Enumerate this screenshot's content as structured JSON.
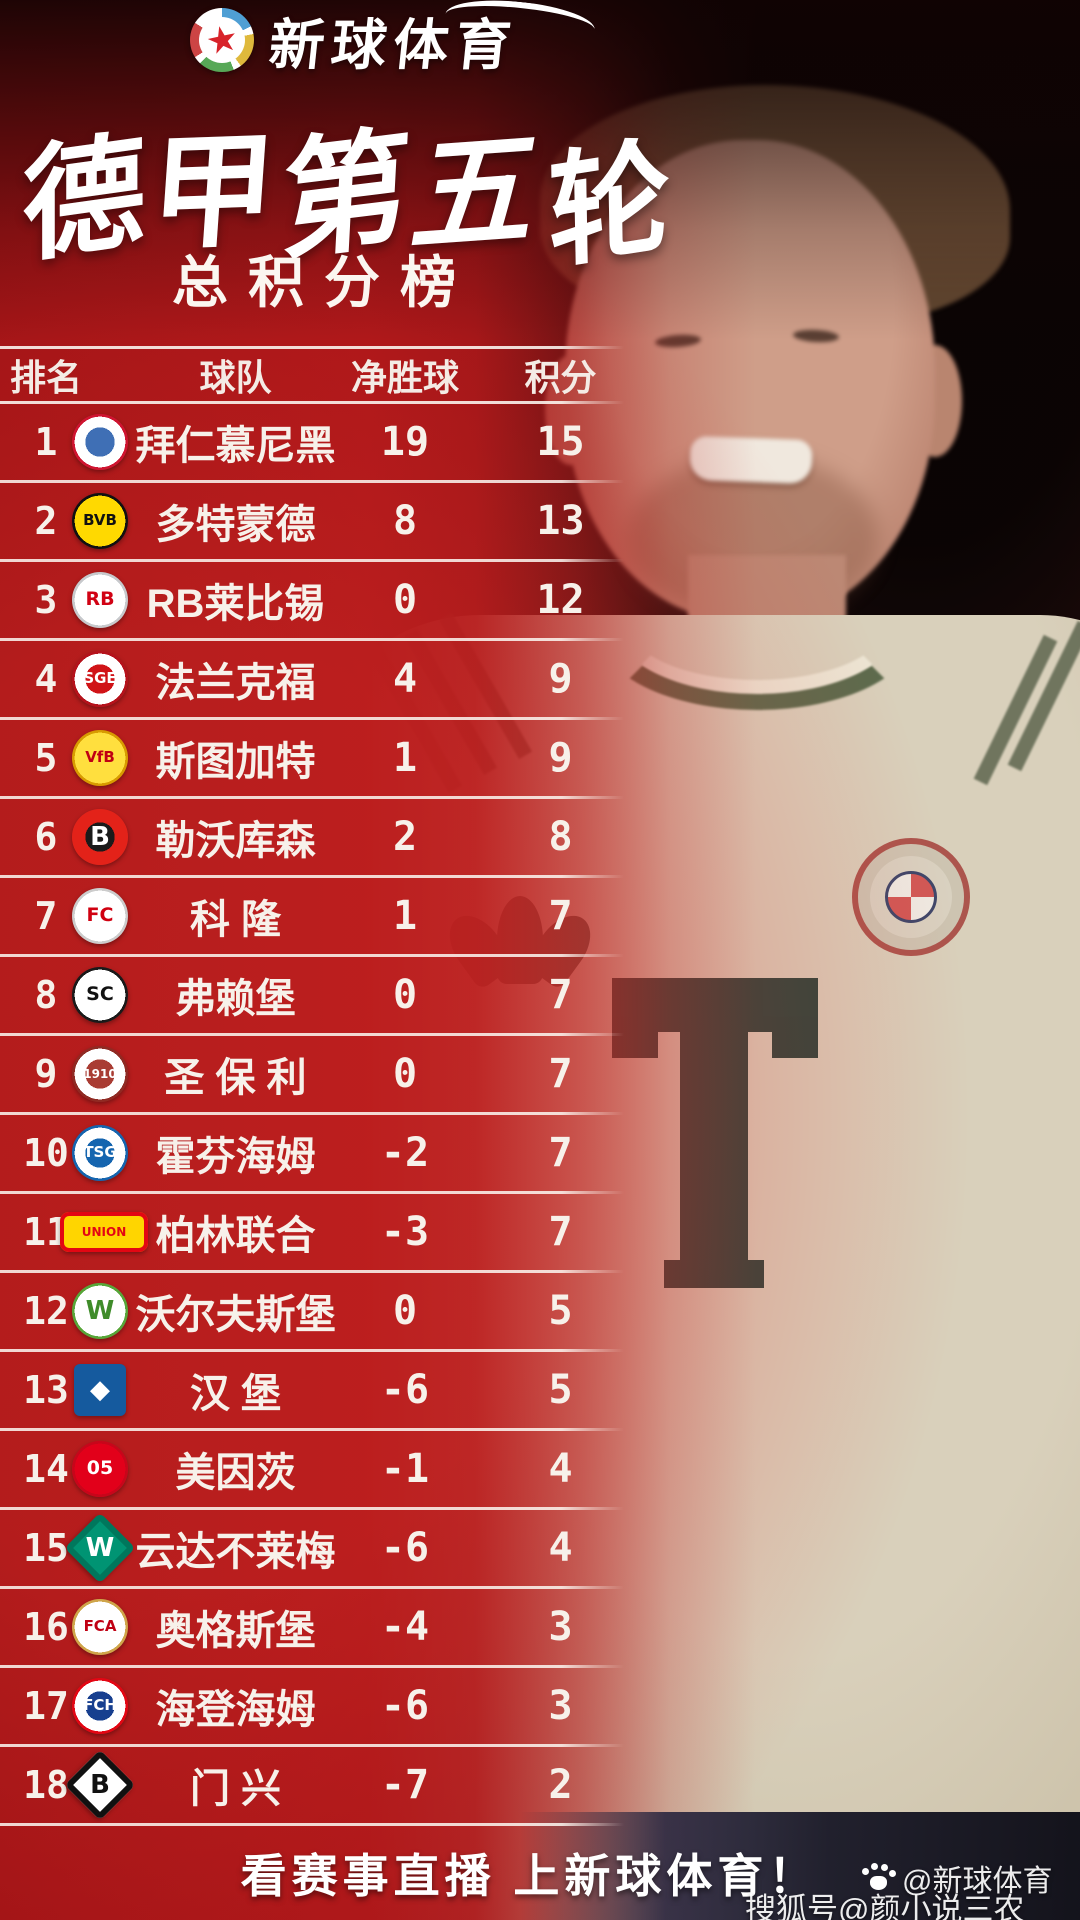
{
  "brand": {
    "name": "新球体育",
    "logo_icon": "soccer-ball-star-icon",
    "star_color": "#d8232a"
  },
  "title": "德甲第五轮",
  "subtitle": "总积分榜",
  "table": {
    "headers": {
      "rank": "排名",
      "team": "球队",
      "gd": "净胜球",
      "points": "积分"
    },
    "rows": [
      {
        "rank": "1",
        "team": "拜仁慕尼黑",
        "gd": "19",
        "points": "15",
        "badge": {
          "shape": "circle",
          "colors": [
            "#cf1430",
            "#ffffff",
            "#3f6fb5"
          ],
          "text": "",
          "text_color": "#ffffff"
        }
      },
      {
        "rank": "2",
        "team": "多特蒙德",
        "gd": "8",
        "points": "13",
        "badge": {
          "shape": "circle",
          "colors": [
            "#111111",
            "#ffd900",
            "#ffd900"
          ],
          "text": "BVB",
          "text_color": "#111111"
        }
      },
      {
        "rank": "3",
        "team": "RB莱比锡",
        "gd": "0",
        "points": "12",
        "badge": {
          "shape": "circle",
          "colors": [
            "#c7c9cc",
            "#ffffff",
            "#ffffff"
          ],
          "text": "RB",
          "text_color": "#d10214"
        }
      },
      {
        "rank": "4",
        "team": "法兰克福",
        "gd": "4",
        "points": "9",
        "badge": {
          "shape": "circle",
          "colors": [
            "#b5121b",
            "#ffffff",
            "#d01317"
          ],
          "text": "SGE",
          "text_color": "#ffffff"
        }
      },
      {
        "rank": "5",
        "team": "斯图加特",
        "gd": "1",
        "points": "9",
        "badge": {
          "shape": "circle",
          "colors": [
            "#d89b00",
            "#ffdf3e",
            "#ffdf3e"
          ],
          "text": "VfB",
          "text_color": "#c00013"
        }
      },
      {
        "rank": "6",
        "team": "勒沃库森",
        "gd": "2",
        "points": "8",
        "badge": {
          "shape": "circle",
          "colors": [
            "#e32219",
            "#e32219",
            "#1a1a1a"
          ],
          "text": "B",
          "text_color": "#ffffff"
        }
      },
      {
        "rank": "7",
        "team": "科 隆",
        "gd": "1",
        "points": "7",
        "badge": {
          "shape": "circle",
          "colors": [
            "#cccccc",
            "#ffffff",
            "#ffffff"
          ],
          "text": "FC",
          "text_color": "#d00010"
        }
      },
      {
        "rank": "8",
        "team": "弗赖堡",
        "gd": "0",
        "points": "7",
        "badge": {
          "shape": "circle",
          "colors": [
            "#1a1a1a",
            "#ffffff",
            "#ffffff"
          ],
          "text": "SC",
          "text_color": "#111111"
        }
      },
      {
        "rank": "9",
        "team": "圣 保 利",
        "gd": "0",
        "points": "7",
        "badge": {
          "shape": "circle",
          "colors": [
            "#8f2a23",
            "#ffffff",
            "#a93c33"
          ],
          "text": "1910",
          "text_color": "#ffffff"
        }
      },
      {
        "rank": "10",
        "team": "霍芬海姆",
        "gd": "-2",
        "points": "7",
        "badge": {
          "shape": "circle",
          "colors": [
            "#1565af",
            "#ffffff",
            "#1565af"
          ],
          "text": "TSG",
          "text_color": "#ffffff"
        }
      },
      {
        "rank": "11",
        "team": "柏林联合",
        "gd": "-3",
        "points": "7",
        "badge": {
          "shape": "wide",
          "colors": [
            "#e30613",
            "#ffd500",
            "#ffd500"
          ],
          "text": "UNION",
          "text_color": "#e30613"
        }
      },
      {
        "rank": "12",
        "team": "沃尔夫斯堡",
        "gd": "0",
        "points": "5",
        "badge": {
          "shape": "circle",
          "colors": [
            "#57a639",
            "#ffffff",
            "#ffffff"
          ],
          "text": "W",
          "text_color": "#3f8c2a"
        }
      },
      {
        "rank": "13",
        "team": "汉 堡",
        "gd": "-6",
        "points": "5",
        "badge": {
          "shape": "square",
          "colors": [
            "#155a9e",
            "#ffffff",
            "#155a9e"
          ],
          "text": "◆",
          "text_color": "#ffffff"
        }
      },
      {
        "rank": "14",
        "team": "美因茨",
        "gd": "-1",
        "points": "4",
        "badge": {
          "shape": "circle",
          "colors": [
            "#c8051a",
            "#e2001a",
            "#e2001a"
          ],
          "text": "05",
          "text_color": "#ffffff"
        }
      },
      {
        "rank": "15",
        "team": "云达不莱梅",
        "gd": "-6",
        "points": "4",
        "badge": {
          "shape": "diamond",
          "colors": [
            "#00775c",
            "#009473",
            "#009473"
          ],
          "text": "W",
          "text_color": "#ffffff"
        }
      },
      {
        "rank": "16",
        "team": "奥格斯堡",
        "gd": "-4",
        "points": "3",
        "badge": {
          "shape": "circle",
          "colors": [
            "#cfa54a",
            "#ffffff",
            "#ffffff"
          ],
          "text": "FCA",
          "text_color": "#c00013"
        }
      },
      {
        "rank": "17",
        "team": "海登海姆",
        "gd": "-6",
        "points": "3",
        "badge": {
          "shape": "circle",
          "colors": [
            "#e30613",
            "#ffffff",
            "#173f8f"
          ],
          "text": "FCH",
          "text_color": "#ffffff"
        }
      },
      {
        "rank": "18",
        "team": "门 兴",
        "gd": "-7",
        "points": "2",
        "badge": {
          "shape": "diamond",
          "colors": [
            "#111111",
            "#ffffff",
            "#ffffff"
          ],
          "text": "B",
          "text_color": "#111111"
        }
      }
    ]
  },
  "footer": {
    "slogan": "看赛事直播 上新球体育！"
  },
  "watermarks": {
    "brand": "@新球体育",
    "paw_icon": "paw-icon",
    "sohu": "搜狐号@颜小说三农"
  },
  "photo": {
    "jersey_sponsor": "T",
    "jersey_color": "#d2c9b2",
    "sponsor_color": "#223f36"
  },
  "colors": {
    "accent_red": "#a91518",
    "deep_red": "#7c1315",
    "line": "#f5efe8",
    "text": "#f7f1ea"
  }
}
